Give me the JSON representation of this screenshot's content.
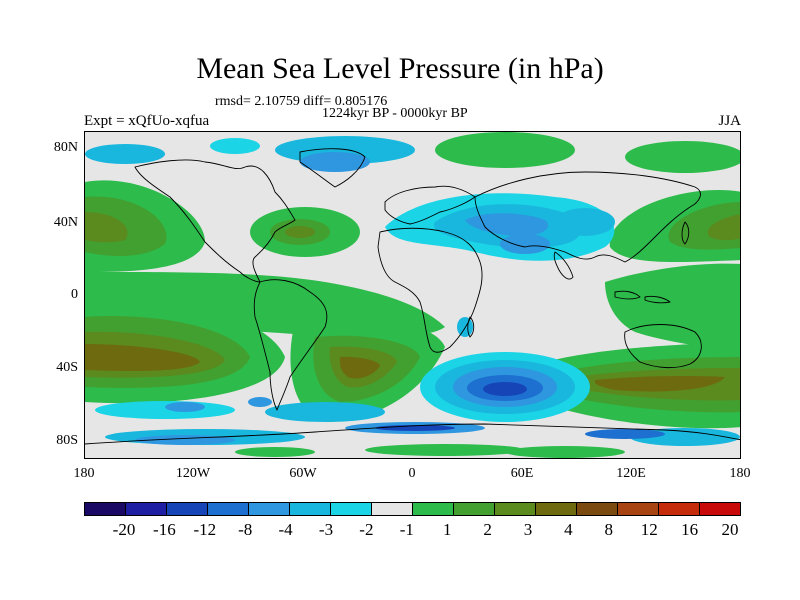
{
  "header": {
    "title": "Mean Sea Level Pressure (in hPa)",
    "stats": "rmsd= 2.10759 diff= 0.805176",
    "period": "1224kyr BP - 0000kyr BP",
    "experiment": "Expt = xQfUo-xqfua",
    "season": "JJA"
  },
  "axes": {
    "y_labels": [
      "80N",
      "40N",
      "0",
      "40S",
      "80S"
    ],
    "x_labels": [
      "180",
      "120W",
      "60W",
      "0",
      "60E",
      "120E",
      "180"
    ]
  },
  "colorbar": {
    "colors": [
      "#1a0a66",
      "#1f1fa3",
      "#1645b8",
      "#1d6fd0",
      "#2e97df",
      "#19b7dd",
      "#1bd4e6",
      "#e6e6e6",
      "#2dbb4b",
      "#42a030",
      "#5b8a1f",
      "#6e6a10",
      "#7a4a10",
      "#a84412",
      "#c42c0c",
      "#c80a0a"
    ],
    "labels": [
      "-20",
      "-16",
      "-12",
      "-8",
      "-4",
      "-3",
      "-2",
      "-1",
      "1",
      "2",
      "3",
      "4",
      "8",
      "12",
      "16",
      "20"
    ]
  }
}
